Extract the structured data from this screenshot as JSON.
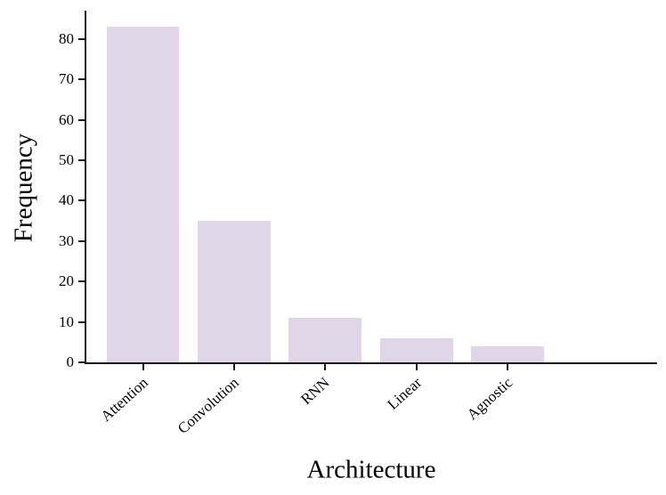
{
  "chart_data": {
    "type": "bar",
    "title": "",
    "xlabel": "Architecture",
    "ylabel": "Frequency",
    "categories": [
      "Attention",
      "Convolution",
      "RNN",
      "Linear",
      "Agnostic"
    ],
    "values": [
      83,
      35,
      11,
      6,
      4
    ],
    "ylim": [
      0,
      87
    ],
    "yticks": [
      0,
      10,
      20,
      30,
      40,
      50,
      60,
      70,
      80
    ],
    "grid": false,
    "legend": "none",
    "x_tick_rotation_deg": 42,
    "bar_color": "#e0d6e8",
    "axis_color": "#1a1a1a",
    "text_color": "#000000"
  }
}
